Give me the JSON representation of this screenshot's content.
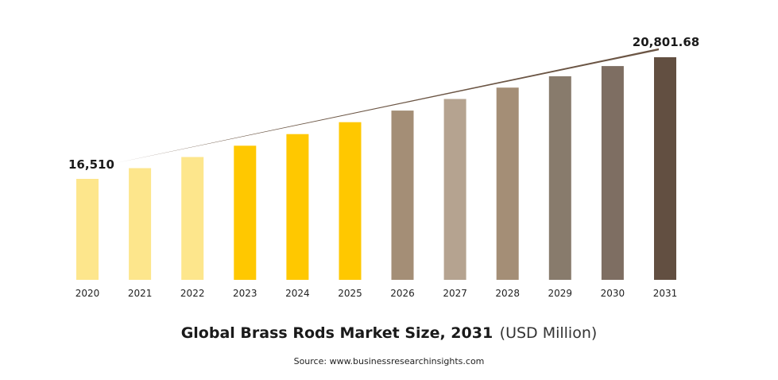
{
  "chart_data": {
    "type": "bar",
    "categories": [
      "2020",
      "2021",
      "2022",
      "2023",
      "2024",
      "2025",
      "2026",
      "2027",
      "2028",
      "2029",
      "2030",
      "2031"
    ],
    "values": [
      16510,
      16890,
      17280,
      17680,
      18090,
      18510,
      18920,
      19330,
      19730,
      20130,
      20490,
      20801.68
    ],
    "colors": [
      "#fde68c",
      "#fde68c",
      "#fde68c",
      "#ffc800",
      "#ffc800",
      "#ffc800",
      "#a48e76",
      "#b5a390",
      "#a48e76",
      "#887b6c",
      "#7e6e62",
      "#624f41"
    ],
    "annotations": [
      {
        "category": "2020",
        "text": "16,510"
      },
      {
        "category": "2031",
        "text": "20,801.68"
      }
    ],
    "trend_line_color": "#6b5544",
    "title": "Global Brass Rods Market Size, 2031",
    "unit": "(USD Million)",
    "source": "Source: www.businessresearchinsights.com"
  }
}
